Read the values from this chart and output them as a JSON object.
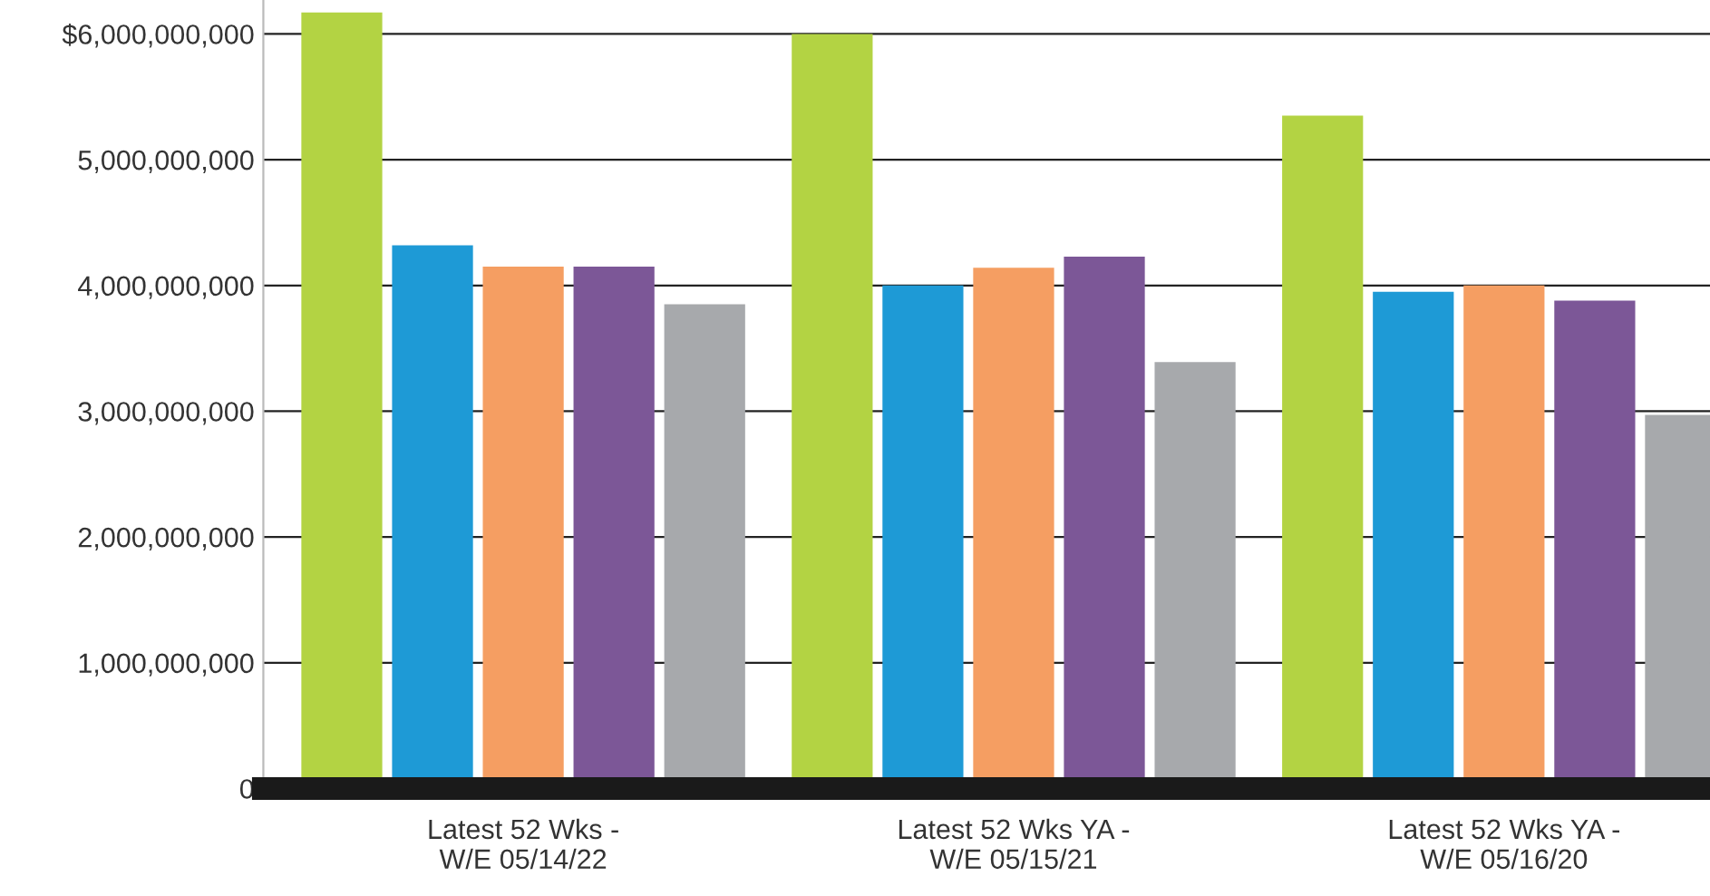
{
  "chart_data": {
    "type": "bar",
    "categories": [
      "Latest 52 Wks -\nW/E 05/14/22",
      "Latest 52 Wks YA -\nW/E 05/15/21",
      "Latest 52 Wks YA -\nW/E 05/16/20"
    ],
    "series": [
      {
        "color": "#b3d343",
        "values": [
          6170000000,
          6000000000,
          5350000000
        ]
      },
      {
        "color": "#1e9ad6",
        "values": [
          4320000000,
          4000000000,
          3950000000
        ]
      },
      {
        "color": "#f59e62",
        "values": [
          4150000000,
          4140000000,
          4000000000
        ]
      },
      {
        "color": "#7c5797",
        "values": [
          4150000000,
          4230000000,
          3880000000
        ]
      },
      {
        "color": "#a7a9ac",
        "values": [
          3850000000,
          3390000000,
          2970000000
        ]
      }
    ],
    "ylim": [
      0,
      6270000000
    ],
    "yticks": [
      0,
      {
        "value": 1000000000,
        "label": "1,000,000,000"
      },
      {
        "value": 2000000000,
        "label": "2,000,000,000"
      },
      {
        "value": 3000000000,
        "label": "3,000,000,000"
      },
      {
        "value": 4000000000,
        "label": "4,000,000,000"
      },
      {
        "value": 5000000000,
        "label": "5,000,000,000"
      },
      {
        "value": 6000000000,
        "label": "$6,000,000,000"
      }
    ],
    "grid": "y",
    "legend": false
  }
}
